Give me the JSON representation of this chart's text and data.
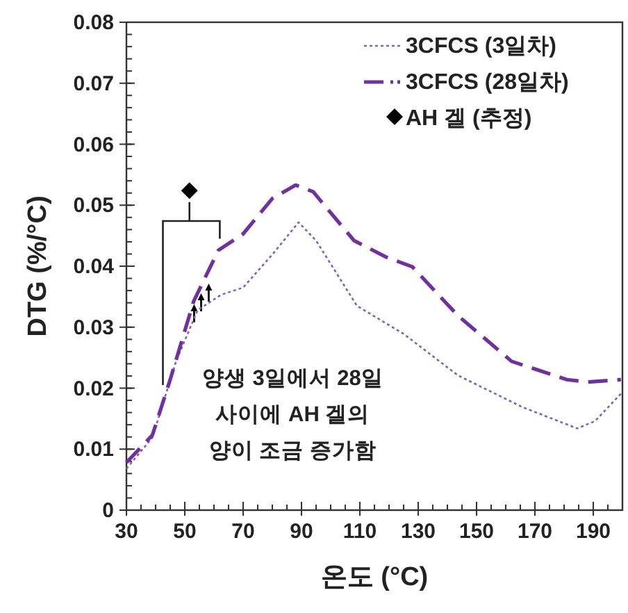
{
  "chart_data": {
    "type": "line",
    "xlabel": "온도 (°C)",
    "ylabel": "DTG (%/°C)",
    "xlim": [
      30,
      200
    ],
    "ylim": [
      0,
      0.08
    ],
    "xticks": [
      30,
      50,
      70,
      90,
      110,
      130,
      150,
      170,
      190
    ],
    "yticks": [
      {
        "value": 0,
        "label": "0"
      },
      {
        "value": 0.01,
        "label": "0.01"
      },
      {
        "value": 0.02,
        "label": "0.02"
      },
      {
        "value": 0.03,
        "label": "0.03"
      },
      {
        "value": 0.04,
        "label": "0.04"
      },
      {
        "value": 0.05,
        "label": "0.05"
      },
      {
        "value": 0.06,
        "label": "0.06"
      },
      {
        "value": 0.07,
        "label": "0.07"
      },
      {
        "value": 0.08,
        "label": "0.08"
      }
    ],
    "grid": false,
    "legend": "top right",
    "marker": "none",
    "series": [
      {
        "name": "3CFCS (3일차)",
        "color": "#8060b8",
        "line_style": "dotted",
        "x": [
          30,
          38.9,
          47,
          54.4,
          62.4,
          70,
          80,
          89,
          95,
          109,
          125,
          143.6,
          165.7,
          184.5,
          190.6,
          199.5
        ],
        "values": [
          0.0068,
          0.0119,
          0.0244,
          0.0328,
          0.0353,
          0.0365,
          0.0419,
          0.0472,
          0.0442,
          0.0335,
          0.0289,
          0.0221,
          0.0169,
          0.0134,
          0.0146,
          0.0191
        ]
      },
      {
        "name": "3CFCS (28일차)",
        "color": "#7030a0",
        "line_style": "dashed",
        "x": [
          30,
          38.9,
          45,
          53,
          61.5,
          70,
          80,
          88,
          94,
          108,
          119,
          128,
          143.6,
          162,
          181,
          188,
          199.5
        ],
        "values": [
          0.0078,
          0.0123,
          0.0214,
          0.0342,
          0.0426,
          0.0453,
          0.0511,
          0.0533,
          0.0522,
          0.0442,
          0.0415,
          0.0399,
          0.0319,
          0.0244,
          0.0214,
          0.021,
          0.0214
        ]
      },
      {
        "name": "AH 겔 (추정)",
        "type": "scatter",
        "marker": "diamond",
        "color": "#000000",
        "x": [
          51.6
        ],
        "values": [
          0.0524
        ]
      }
    ],
    "annotations": [
      "양생 3일에서 28일 사이에 AH 겔의 양이 조금 증가함"
    ]
  }
}
